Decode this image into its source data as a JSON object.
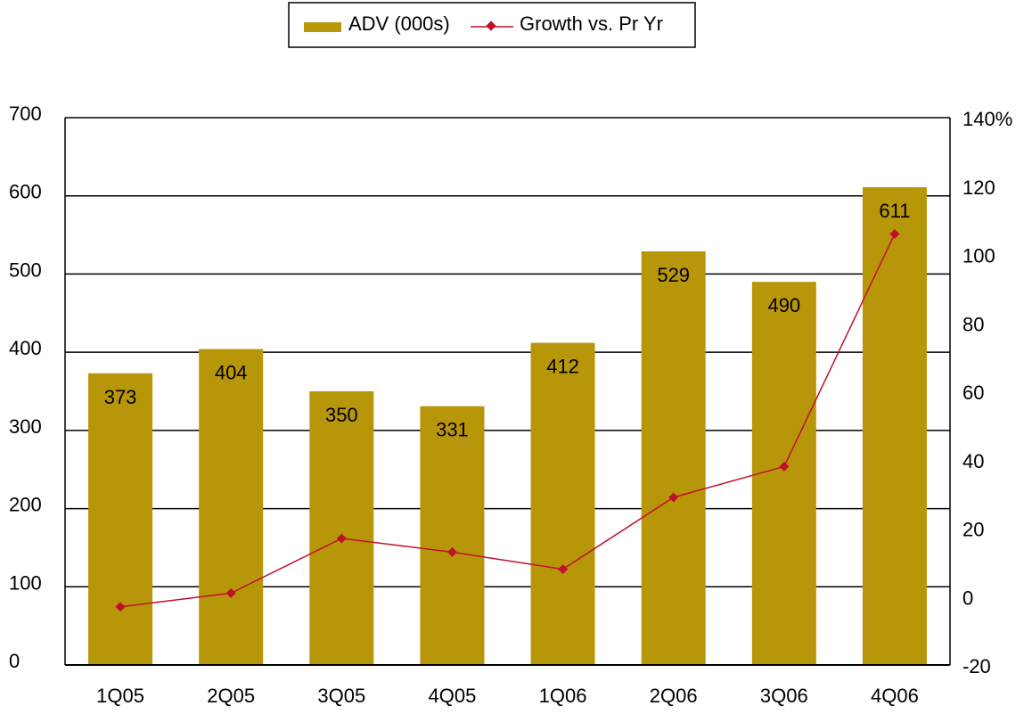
{
  "chart_data": {
    "type": "bar",
    "categories": [
      "1Q05",
      "2Q05",
      "3Q05",
      "4Q05",
      "1Q06",
      "2Q06",
      "3Q06",
      "4Q06"
    ],
    "series": [
      {
        "name": "ADV (000s)",
        "type": "bar",
        "axis": "left",
        "color": "#b8960a",
        "values": [
          373,
          404,
          350,
          331,
          412,
          529,
          490,
          611
        ],
        "data_labels": [
          "373",
          "404",
          "350",
          "331",
          "412",
          "529",
          "490",
          "611"
        ]
      },
      {
        "name": "Growth vs. Pr Yr",
        "type": "line",
        "axis": "right",
        "color": "#c0102a",
        "marker": "diamond",
        "values": [
          -3,
          1,
          17,
          13,
          8,
          29,
          38,
          106
        ]
      }
    ],
    "y_left": {
      "min": 0,
      "max": 700,
      "ticks": [
        0,
        100,
        200,
        300,
        400,
        500,
        600,
        700
      ],
      "tick_labels": [
        "0",
        "100",
        "200",
        "300",
        "400",
        "500",
        "600",
        "700"
      ]
    },
    "y_right": {
      "min": -20,
      "max": 140,
      "ticks": [
        -20,
        0,
        20,
        40,
        60,
        80,
        100,
        120,
        140
      ],
      "tick_labels": [
        "-20",
        "0",
        "20",
        "40",
        "60",
        "80",
        "100",
        "120",
        "140%"
      ]
    },
    "grid": true,
    "legend": {
      "position": "top-center",
      "entries": [
        "ADV (000s)",
        "Growth vs. Pr Yr"
      ]
    }
  }
}
